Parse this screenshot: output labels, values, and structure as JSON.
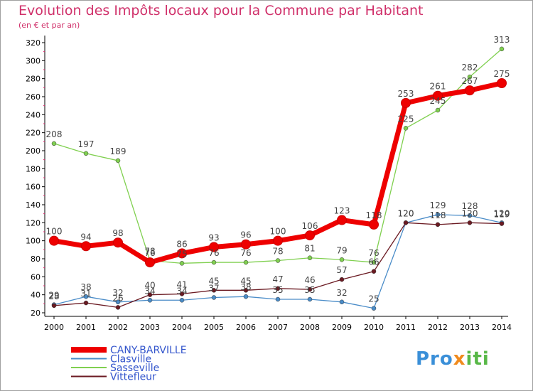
{
  "header": {
    "title": "Evolution des Impôts locaux pour la Commune par Habitant",
    "subtitle": "(en € et par an)"
  },
  "logo": {
    "part1": "Pro",
    "part2": "x",
    "part3": "iti"
  },
  "chart_data": {
    "type": "line",
    "title": "Evolution des Impôts locaux pour la Commune par Habitant",
    "subtitle": "(en € et par an)",
    "xlabel": "",
    "ylabel": "",
    "x": [
      2000,
      2001,
      2002,
      2003,
      2004,
      2005,
      2006,
      2007,
      2008,
      2009,
      2010,
      2011,
      2012,
      2013,
      2014
    ],
    "ylim": [
      20,
      320
    ],
    "yticks": [
      20,
      40,
      60,
      80,
      100,
      120,
      140,
      160,
      180,
      200,
      220,
      240,
      260,
      280,
      300,
      320
    ],
    "grid": false,
    "legend_position": "bottom-left",
    "series": [
      {
        "name": "CANY-BARVILLE",
        "color": "#ee0000",
        "values": [
          100,
          94,
          98,
          76,
          86,
          93,
          96,
          100,
          106,
          123,
          118,
          253,
          261,
          267,
          275
        ]
      },
      {
        "name": "Clasville",
        "color": "#4a8cc8",
        "values": [
          29,
          38,
          32,
          34,
          34,
          37,
          38,
          35,
          35,
          32,
          25,
          120,
          129,
          128,
          120
        ]
      },
      {
        "name": "Sasseville",
        "color": "#80d050",
        "values": [
          208,
          197,
          189,
          78,
          75,
          76,
          76,
          78,
          81,
          79,
          76,
          225,
          245,
          282,
          313
        ]
      },
      {
        "name": "Vittefleur",
        "color": "#6b1a22",
        "values": [
          28,
          31,
          26,
          40,
          41,
          45,
          45,
          47,
          46,
          57,
          66,
          120,
          118,
          120,
          119
        ]
      }
    ]
  }
}
